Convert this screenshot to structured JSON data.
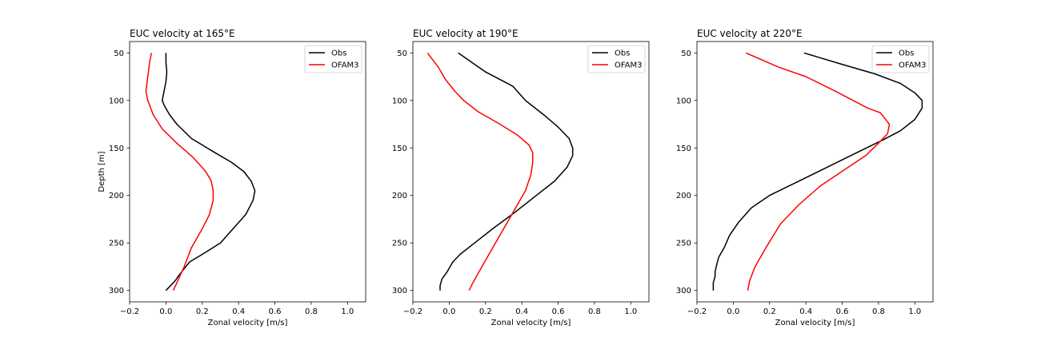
{
  "figure": {
    "background": "#ffffff"
  },
  "chart_data": [
    {
      "type": "line",
      "title": "EUC velocity at 165°E",
      "xlabel": "Zonal velocity [m/s]",
      "ylabel": "Depth [m]",
      "xlim": [
        -0.2,
        1.1
      ],
      "ylim": [
        312,
        38
      ],
      "y_inverted": true,
      "xticks": [
        "−0.2",
        "0.0",
        "0.2",
        "0.4",
        "0.6",
        "0.8",
        "1.0"
      ],
      "xtick_values": [
        -0.2,
        0.0,
        0.2,
        0.4,
        0.6,
        0.8,
        1.0
      ],
      "yticks": [
        "50",
        "100",
        "150",
        "200",
        "250",
        "300"
      ],
      "ytick_values": [
        50,
        100,
        150,
        200,
        250,
        300
      ],
      "legend": {
        "placement": "top-right",
        "entries": [
          "Obs",
          "OFAM3"
        ]
      },
      "series": [
        {
          "name": "Obs",
          "color": "#000000",
          "points": [
            [
              0.0,
              50
            ],
            [
              0.0,
              60
            ],
            [
              0.005,
              70
            ],
            [
              0.0,
              80
            ],
            [
              -0.01,
              90
            ],
            [
              -0.02,
              100
            ],
            [
              -0.01,
              105
            ],
            [
              0.02,
              115
            ],
            [
              0.06,
              125
            ],
            [
              0.14,
              140
            ],
            [
              0.27,
              155
            ],
            [
              0.36,
              165
            ],
            [
              0.43,
              175
            ],
            [
              0.47,
              185
            ],
            [
              0.49,
              195
            ],
            [
              0.48,
              205
            ],
            [
              0.44,
              220
            ],
            [
              0.37,
              235
            ],
            [
              0.3,
              250
            ],
            [
              0.2,
              262
            ],
            [
              0.13,
              270
            ],
            [
              0.08,
              282
            ],
            [
              0.05,
              290
            ],
            [
              0.02,
              296
            ],
            [
              0.0,
              300
            ]
          ]
        },
        {
          "name": "OFAM3",
          "color": "#ff0000",
          "points": [
            [
              -0.08,
              50
            ],
            [
              -0.09,
              60
            ],
            [
              -0.1,
              75
            ],
            [
              -0.11,
              90
            ],
            [
              -0.1,
              100
            ],
            [
              -0.07,
              115
            ],
            [
              -0.02,
              130
            ],
            [
              0.06,
              145
            ],
            [
              0.15,
              160
            ],
            [
              0.22,
              175
            ],
            [
              0.25,
              185
            ],
            [
              0.26,
              195
            ],
            [
              0.26,
              205
            ],
            [
              0.24,
              220
            ],
            [
              0.2,
              235
            ],
            [
              0.14,
              255
            ],
            [
              0.1,
              275
            ],
            [
              0.06,
              292
            ],
            [
              0.04,
              300
            ]
          ]
        }
      ]
    },
    {
      "type": "line",
      "title": "EUC velocity at 190°E",
      "xlabel": "Zonal velocity [m/s]",
      "ylabel": "",
      "xlim": [
        -0.2,
        1.1
      ],
      "ylim": [
        312,
        38
      ],
      "y_inverted": true,
      "xticks": [
        "−0.2",
        "0.0",
        "0.2",
        "0.4",
        "0.6",
        "0.8",
        "1.0"
      ],
      "xtick_values": [
        -0.2,
        0.0,
        0.2,
        0.4,
        0.6,
        0.8,
        1.0
      ],
      "yticks": [
        "50",
        "100",
        "150",
        "200",
        "250",
        "300"
      ],
      "ytick_values": [
        50,
        100,
        150,
        200,
        250,
        300
      ],
      "legend": {
        "placement": "top-right",
        "entries": [
          "Obs",
          "OFAM3"
        ]
      },
      "series": [
        {
          "name": "Obs",
          "color": "#000000",
          "points": [
            [
              0.05,
              50
            ],
            [
              0.2,
              70
            ],
            [
              0.35,
              85
            ],
            [
              0.42,
              100
            ],
            [
              0.52,
              115
            ],
            [
              0.6,
              128
            ],
            [
              0.66,
              140
            ],
            [
              0.68,
              150
            ],
            [
              0.68,
              158
            ],
            [
              0.65,
              170
            ],
            [
              0.58,
              185
            ],
            [
              0.48,
              200
            ],
            [
              0.36,
              218
            ],
            [
              0.24,
              235
            ],
            [
              0.14,
              250
            ],
            [
              0.06,
              262
            ],
            [
              0.02,
              270
            ],
            [
              -0.01,
              280
            ],
            [
              -0.04,
              288
            ],
            [
              -0.05,
              295
            ],
            [
              -0.05,
              300
            ]
          ]
        },
        {
          "name": "OFAM3",
          "color": "#ff0000",
          "points": [
            [
              -0.12,
              50
            ],
            [
              -0.06,
              65
            ],
            [
              -0.02,
              78
            ],
            [
              0.03,
              90
            ],
            [
              0.08,
              100
            ],
            [
              0.16,
              112
            ],
            [
              0.28,
              125
            ],
            [
              0.38,
              137
            ],
            [
              0.44,
              147
            ],
            [
              0.46,
              155
            ],
            [
              0.46,
              165
            ],
            [
              0.45,
              178
            ],
            [
              0.42,
              195
            ],
            [
              0.36,
              215
            ],
            [
              0.3,
              235
            ],
            [
              0.24,
              255
            ],
            [
              0.18,
              275
            ],
            [
              0.13,
              292
            ],
            [
              0.11,
              300
            ]
          ]
        }
      ]
    },
    {
      "type": "line",
      "title": "EUC velocity at 220°E",
      "xlabel": "Zonal velocity [m/s]",
      "ylabel": "",
      "xlim": [
        -0.2,
        1.1
      ],
      "ylim": [
        312,
        38
      ],
      "y_inverted": true,
      "xticks": [
        "−0.2",
        "0.0",
        "0.2",
        "0.4",
        "0.6",
        "0.8",
        "1.0"
      ],
      "xtick_values": [
        -0.2,
        0.0,
        0.2,
        0.4,
        0.6,
        0.8,
        1.0
      ],
      "yticks": [
        "50",
        "100",
        "150",
        "200",
        "250",
        "300"
      ],
      "ytick_values": [
        50,
        100,
        150,
        200,
        250,
        300
      ],
      "legend": {
        "placement": "top-right",
        "entries": [
          "Obs",
          "OFAM3"
        ]
      },
      "series": [
        {
          "name": "Obs",
          "color": "#000000",
          "points": [
            [
              0.39,
              50
            ],
            [
              0.6,
              62
            ],
            [
              0.78,
              72
            ],
            [
              0.92,
              82
            ],
            [
              1.0,
              92
            ],
            [
              1.04,
              100
            ],
            [
              1.04,
              108
            ],
            [
              1.0,
              120
            ],
            [
              0.92,
              132
            ],
            [
              0.82,
              142
            ],
            [
              0.68,
              155
            ],
            [
              0.52,
              170
            ],
            [
              0.36,
              185
            ],
            [
              0.2,
              200
            ],
            [
              0.1,
              213
            ],
            [
              0.03,
              228
            ],
            [
              -0.02,
              242
            ],
            [
              -0.05,
              255
            ],
            [
              -0.08,
              265
            ],
            [
              -0.09,
              272
            ],
            [
              -0.1,
              280
            ],
            [
              -0.1,
              285
            ],
            [
              -0.11,
              292
            ],
            [
              -0.11,
              300
            ]
          ]
        },
        {
          "name": "OFAM3",
          "color": "#ff0000",
          "points": [
            [
              0.07,
              50
            ],
            [
              0.25,
              65
            ],
            [
              0.4,
              75
            ],
            [
              0.56,
              90
            ],
            [
              0.66,
              100
            ],
            [
              0.74,
              108
            ],
            [
              0.81,
              113
            ],
            [
              0.86,
              125
            ],
            [
              0.85,
              135
            ],
            [
              0.8,
              145
            ],
            [
              0.73,
              158
            ],
            [
              0.62,
              172
            ],
            [
              0.48,
              190
            ],
            [
              0.36,
              210
            ],
            [
              0.26,
              230
            ],
            [
              0.18,
              255
            ],
            [
              0.12,
              275
            ],
            [
              0.09,
              290
            ],
            [
              0.08,
              300
            ]
          ]
        }
      ]
    }
  ]
}
